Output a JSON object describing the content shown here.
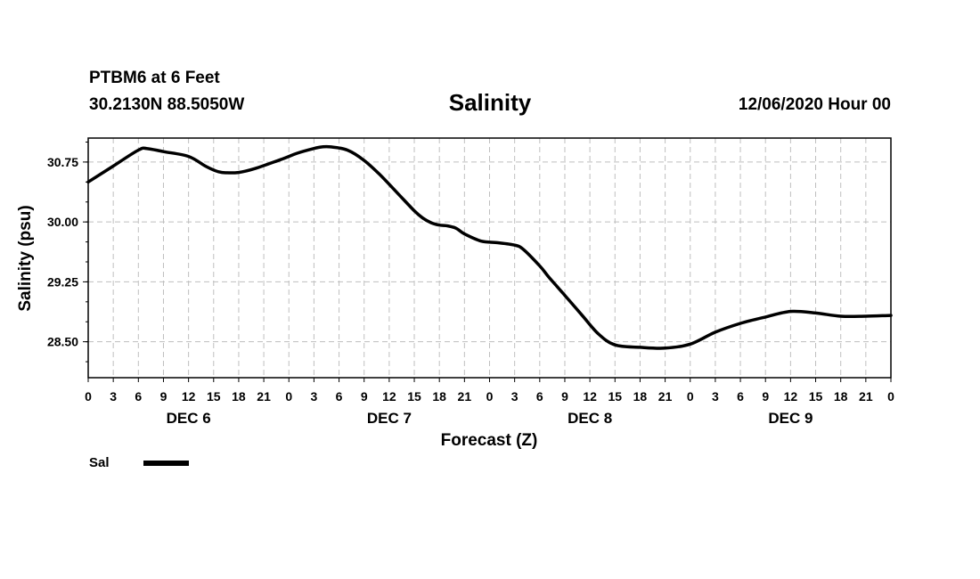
{
  "header": {
    "station": "PTBM6 at 6 Feet",
    "coords": "30.2130N 88.5050W",
    "date": "12/06/2020 Hour 00"
  },
  "legend": {
    "label": "Sal",
    "color": "#000000"
  },
  "chart_data": {
    "type": "line",
    "title": "Salinity",
    "xlabel": "Forecast (Z)",
    "ylabel": "Salinity (psu)",
    "x_unit": "forecast hour",
    "xlim": [
      0,
      96
    ],
    "ylim": [
      28.05,
      31.05
    ],
    "y_ticks": [
      28.5,
      29.25,
      30.0,
      30.75
    ],
    "y_tick_labels": [
      "28.50",
      "29.25",
      "30.00",
      "30.75"
    ],
    "x_ticks": [
      0,
      3,
      6,
      9,
      12,
      15,
      18,
      21,
      24,
      27,
      30,
      33,
      36,
      39,
      42,
      45,
      48,
      51,
      54,
      57,
      60,
      63,
      66,
      69,
      72,
      75,
      78,
      81,
      84,
      87,
      90,
      93,
      96
    ],
    "x_tick_labels": [
      "0",
      "3",
      "6",
      "9",
      "12",
      "15",
      "18",
      "21",
      "0",
      "3",
      "6",
      "9",
      "12",
      "15",
      "18",
      "21",
      "0",
      "3",
      "6",
      "9",
      "12",
      "15",
      "18",
      "21",
      "0",
      "3",
      "6",
      "9",
      "12",
      "15",
      "18",
      "21",
      "0"
    ],
    "day_labels": [
      {
        "hour": 12,
        "label": "DEC 6"
      },
      {
        "hour": 36,
        "label": "DEC 7"
      },
      {
        "hour": 60,
        "label": "DEC 8"
      },
      {
        "hour": 84,
        "label": "DEC 9"
      }
    ],
    "grid": true,
    "series": [
      {
        "name": "Sal",
        "color": "#000000",
        "x": [
          0,
          3,
          6,
          7,
          9,
          12,
          14,
          15,
          16,
          18,
          20,
          23,
          25,
          27,
          28,
          29,
          31,
          33,
          35,
          37,
          39,
          40,
          41,
          42,
          43,
          44,
          45,
          47,
          49,
          51,
          52,
          54,
          55,
          56,
          57,
          59,
          61,
          63,
          66,
          69,
          72,
          75,
          78,
          81,
          84,
          87,
          90,
          93,
          96
        ],
        "values": [
          30.5,
          30.7,
          30.9,
          30.92,
          30.88,
          30.82,
          30.7,
          30.65,
          30.62,
          30.62,
          30.67,
          30.78,
          30.86,
          30.92,
          30.94,
          30.94,
          30.9,
          30.77,
          30.58,
          30.36,
          30.14,
          30.05,
          29.99,
          29.96,
          29.95,
          29.92,
          29.85,
          29.76,
          29.74,
          29.71,
          29.66,
          29.45,
          29.32,
          29.2,
          29.08,
          28.84,
          28.6,
          28.46,
          28.43,
          28.42,
          28.47,
          28.62,
          28.73,
          28.81,
          28.88,
          28.86,
          28.82,
          28.82,
          28.83
        ]
      }
    ]
  }
}
